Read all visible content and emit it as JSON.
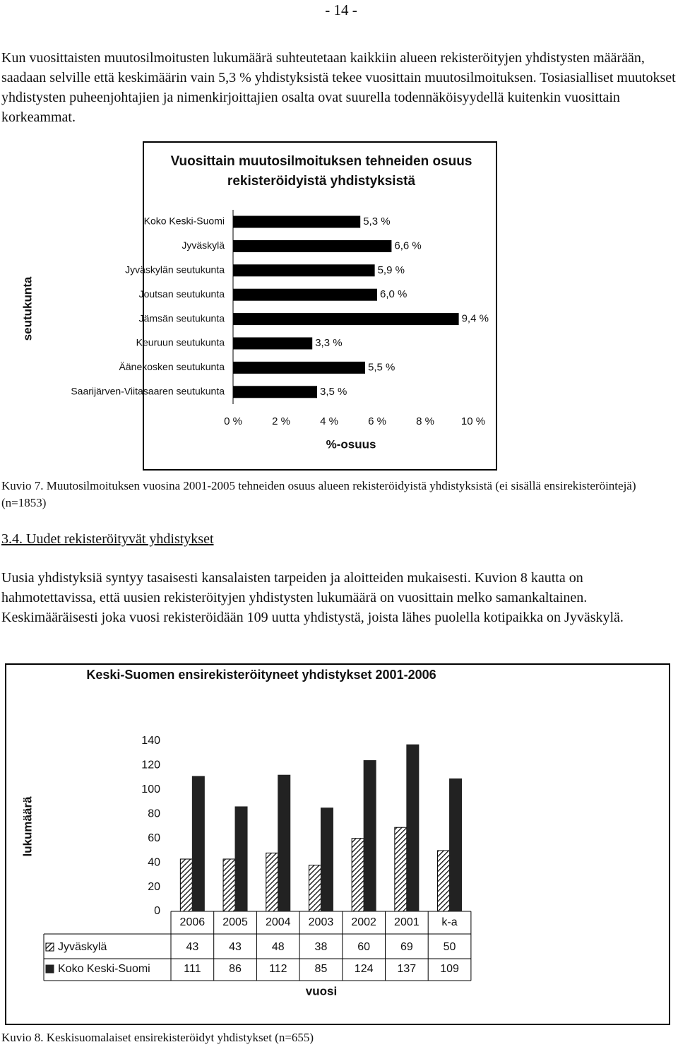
{
  "page_number": "- 14 -",
  "paragraph_1": "Kun vuosittaisten muutosilmoitusten lukumäärä suhteutetaan kaikkiin alueen rekisteröityjen yhdistysten määrään, saadaan selville että keskimäärin vain 5,3 % yhdistyksistä tekee vuosittain muutosilmoituksen. Tosiasialliset muutokset yhdistysten puheenjohtajien ja nimenkirjoittajien osalta ovat suurella todennäköisyydellä kuitenkin vuosittain korkeammat.",
  "chart_data": [
    {
      "type": "hbar",
      "title": "Vuosittain muutosilmoituksen tehneiden osuus rekisteröidyistä yhdistyksistä",
      "x_label": "%-osuus",
      "y_label": "seutukunta",
      "categories": [
        "Koko Keski-Suomi",
        "Jyväskylä",
        "Jyväskylän seutukunta",
        "Joutsan seutukunta",
        "Jämsän seutukunta",
        "Keuruun seutukunta",
        "Äänekosken seutukunta",
        "Saarijärven-Viitasaaren seutukunta"
      ],
      "values": [
        5.3,
        6.6,
        5.9,
        6.0,
        9.4,
        3.3,
        5.5,
        3.5
      ],
      "value_labels": [
        "5,3 %",
        "6,6 %",
        "5,9 %",
        "6,0 %",
        "9,4 %",
        "3,3 %",
        "5,5 %",
        "3,5 %"
      ],
      "color": "#000000",
      "xlim": [
        0,
        10
      ],
      "xticks": [
        {
          "value": 0,
          "label": "0 %"
        },
        {
          "value": 2,
          "label": "2 %"
        },
        {
          "value": 4,
          "label": "4 %"
        },
        {
          "value": 6,
          "label": "6 %"
        },
        {
          "value": 8,
          "label": "8 %"
        },
        {
          "value": 10,
          "label": "10 %"
        }
      ]
    },
    {
      "type": "bar",
      "title": "Keski-Suomen ensirekisteröityneet yhdistykset 2001-2006",
      "x_label": "vuosi",
      "y_label": "lukumäärä",
      "categories": [
        "2006",
        "2005",
        "2004",
        "2003",
        "2002",
        "2001",
        "k-a"
      ],
      "series": [
        {
          "name": "Jyväskylä",
          "color": "#000000",
          "hatch": true,
          "values": [
            43,
            43,
            48,
            38,
            60,
            69,
            50
          ]
        },
        {
          "name": "Koko Keski-Suomi",
          "color": "#222222",
          "hatch": false,
          "values": [
            111,
            86,
            112,
            85,
            124,
            137,
            109
          ]
        }
      ],
      "ylim": [
        0,
        140
      ],
      "yticks": [
        0,
        20,
        40,
        60,
        80,
        100,
        120,
        140
      ]
    }
  ],
  "caption_7": "Kuvio 7. Muutosilmoituksen vuosina 2001-2005 tehneiden osuus alueen rekisteröidyistä yhdistyksistä (ei sisällä ensirekisteröintejä) (n=1853)",
  "heading": "3.4. Uudet rekisteröityvät yhdistykset",
  "paragraph_2": "Uusia yhdistyksiä syntyy tasaisesti kansalaisten tarpeiden ja aloitteiden mukaisesti. Kuvion 8 kautta on hahmotettavissa, että uusien rekisteröityjen yhdistysten lukumäärä on vuosittain melko samankaltainen. Keskimääräisesti joka vuosi rekisteröidään 109 uutta yhdistystä, joista lähes puolella kotipaikka on Jyväskylä.",
  "caption_8": "Kuvio 8. Keskisuomalaiset ensirekisteröidyt yhdistykset (n=655)"
}
